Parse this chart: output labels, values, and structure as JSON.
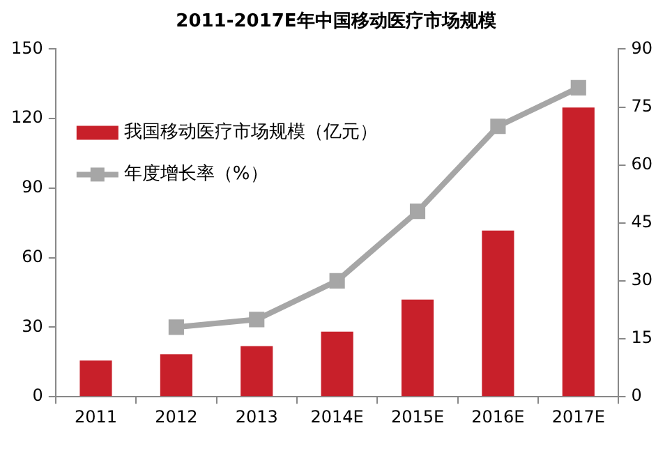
{
  "chart_data": {
    "type": "bar",
    "title": "2011-2017E年中国移动医疗市场规模",
    "categories": [
      "2011",
      "2012",
      "2013",
      "2014E",
      "2015E",
      "2016E",
      "2017E"
    ],
    "series": [
      {
        "name": "我国移动医疗市场规模（亿元）",
        "color": "#c8202a",
        "values": [
          15.6,
          18.3,
          21.9,
          28.1,
          41.9,
          71.7,
          124.8
        ]
      },
      {
        "name": "年度增长率（%）",
        "type": "line",
        "axis": "y2",
        "color": "#a6a6a6",
        "marker": "square",
        "values": [
          null,
          18,
          20,
          30,
          48,
          70,
          80
        ]
      }
    ],
    "ylim": [
      0,
      150
    ],
    "yticks": [
      0,
      30,
      60,
      90,
      120,
      150
    ],
    "y2lim": [
      0,
      90
    ],
    "y2ticks": [
      0,
      15,
      30,
      45,
      60,
      75,
      90
    ],
    "grid": false,
    "legend": "top left"
  }
}
